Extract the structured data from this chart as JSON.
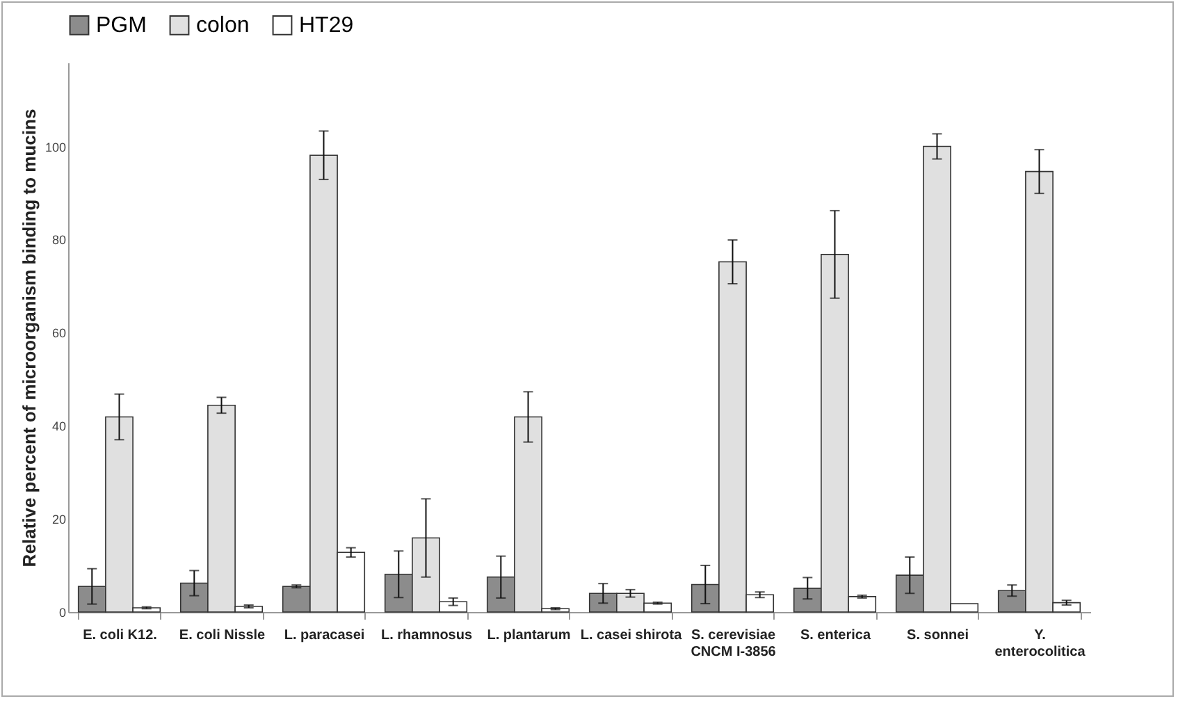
{
  "chart_data": {
    "type": "bar",
    "ylabel": "Relative percent of microorganism binding to mucins",
    "categories": [
      "E. coli K12.",
      "E. coli Nissle",
      "L. paracasei",
      "L. rhamnosus",
      "L. plantarum",
      "L. casei shirota",
      "S. cerevisiae\nCNCM I-3856",
      "S. enterica",
      "S. sonnei",
      "Y.\nenterocolitica"
    ],
    "series": [
      {
        "name": "PGM",
        "color": "#8c8c8c",
        "values": [
          5.5,
          6.2,
          5.5,
          8.1,
          7.5,
          4.0,
          5.9,
          5.1,
          7.9,
          4.6
        ],
        "errors": [
          3.8,
          2.7,
          0.3,
          5.0,
          4.5,
          2.1,
          4.1,
          2.3,
          3.9,
          1.2
        ]
      },
      {
        "name": "colon",
        "color": "#e0e0e0",
        "values": [
          41.9,
          44.4,
          98.1,
          15.9,
          41.9,
          4.0,
          75.2,
          76.8,
          100,
          94.6
        ],
        "errors": [
          4.9,
          1.7,
          5.2,
          8.4,
          5.4,
          0.8,
          4.7,
          9.4,
          2.7,
          4.7
        ]
      },
      {
        "name": "HT29",
        "color": "#ffffff",
        "values": [
          0.9,
          1.2,
          12.8,
          2.2,
          0.7,
          1.9,
          3.7,
          3.3,
          1.8,
          2.0
        ],
        "errors": [
          0.2,
          0.3,
          1.0,
          0.8,
          0.2,
          0.2,
          0.6,
          0.3,
          null,
          0.5
        ]
      }
    ],
    "ylim": [
      0,
      118
    ],
    "yticks": [
      0,
      20,
      40,
      60,
      80,
      100
    ],
    "grid": false,
    "legend": "top"
  }
}
